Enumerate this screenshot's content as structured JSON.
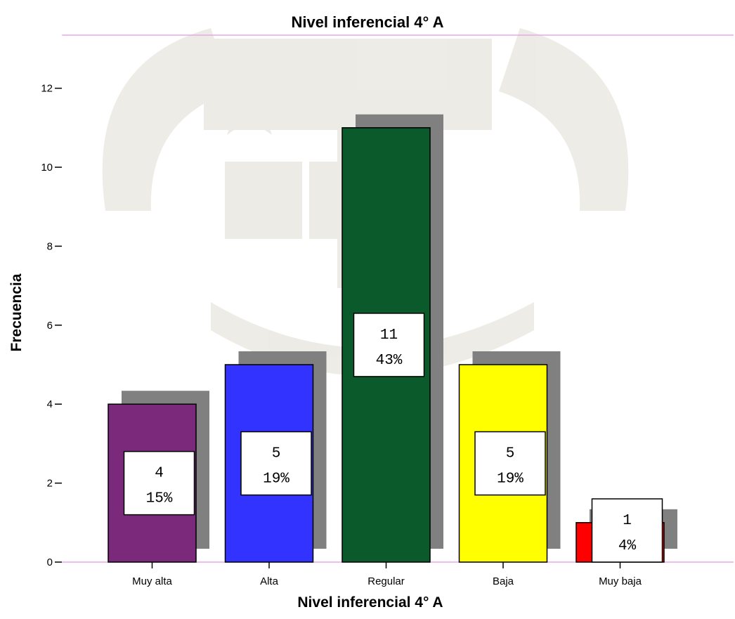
{
  "chart_data": {
    "type": "bar",
    "title": "Nivel inferencial 4° A",
    "xlabel": "Nivel inferencial 4° A",
    "ylabel": "Frecuencia",
    "categories": [
      "Muy alta",
      "Alta",
      "Regular",
      "Baja",
      "Muy baja"
    ],
    "values": [
      4,
      5,
      11,
      5,
      1
    ],
    "value_labels": [
      "4",
      "5",
      "11",
      "5",
      "1"
    ],
    "percent_labels": [
      "15%",
      "19%",
      "43%",
      "19%",
      "4%"
    ],
    "colors": [
      "#7b2a7b",
      "#3333ff",
      "#0a5a2c",
      "#ffff00",
      "#ff0000"
    ],
    "shadow_color": "#808080",
    "ylim": [
      0,
      13
    ],
    "yticks": [
      "0",
      "2",
      "4",
      "6",
      "8",
      "10",
      "12"
    ],
    "grid": false,
    "legend": "none"
  }
}
